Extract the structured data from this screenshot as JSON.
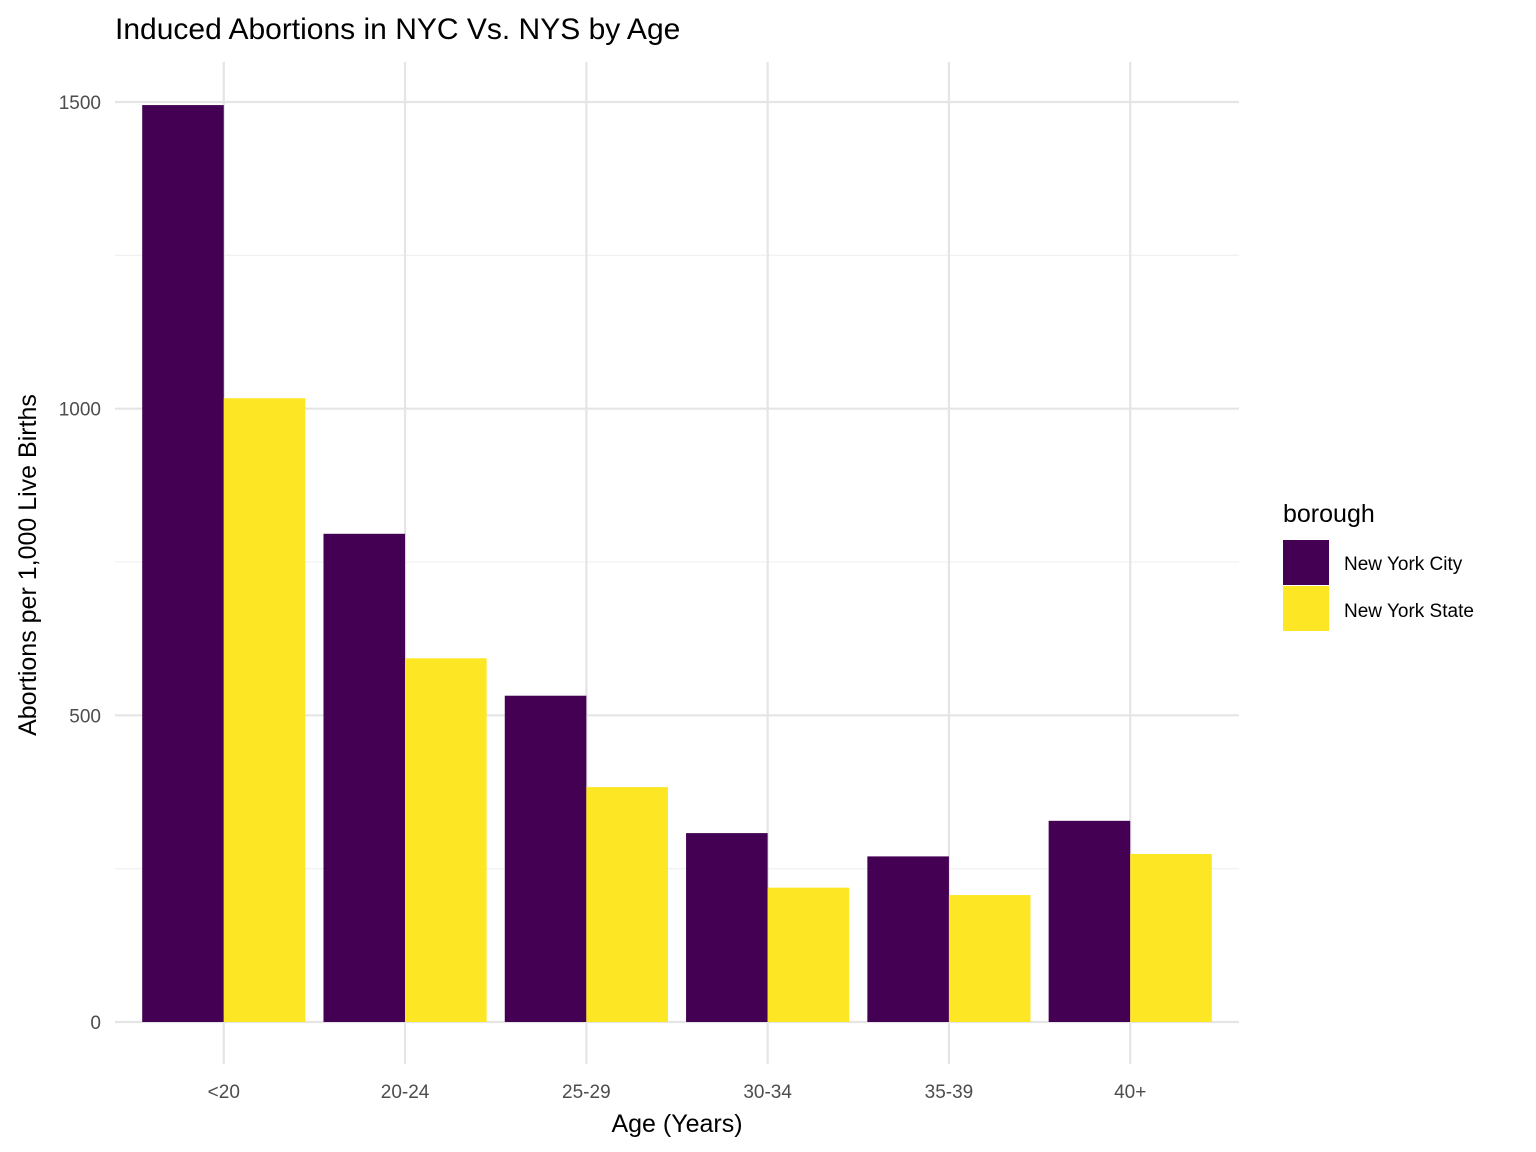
{
  "chart_data": {
    "type": "bar",
    "title": "Induced Abortions in NYC Vs. NYS by Age",
    "xlabel": "Age (Years)",
    "ylabel": "Abortions per 1,000 Live Births",
    "categories": [
      "<20",
      "20-24",
      "25-29",
      "30-34",
      "35-39",
      "40+"
    ],
    "series": [
      {
        "name": "New York City",
        "color": "#440154",
        "values": [
          1495,
          796,
          532,
          308,
          270,
          328
        ]
      },
      {
        "name": "New York State",
        "color": "#FDE725",
        "values": [
          1017,
          593,
          383,
          219,
          207,
          274
        ]
      }
    ],
    "ylim": [
      -70,
      1570
    ],
    "y_ticks": [
      0,
      500,
      1000,
      1500
    ],
    "y_tick_labels": [
      "0",
      "500",
      "1000",
      "1500"
    ],
    "legend": {
      "title": "borough",
      "position": "right"
    },
    "grid": true
  }
}
